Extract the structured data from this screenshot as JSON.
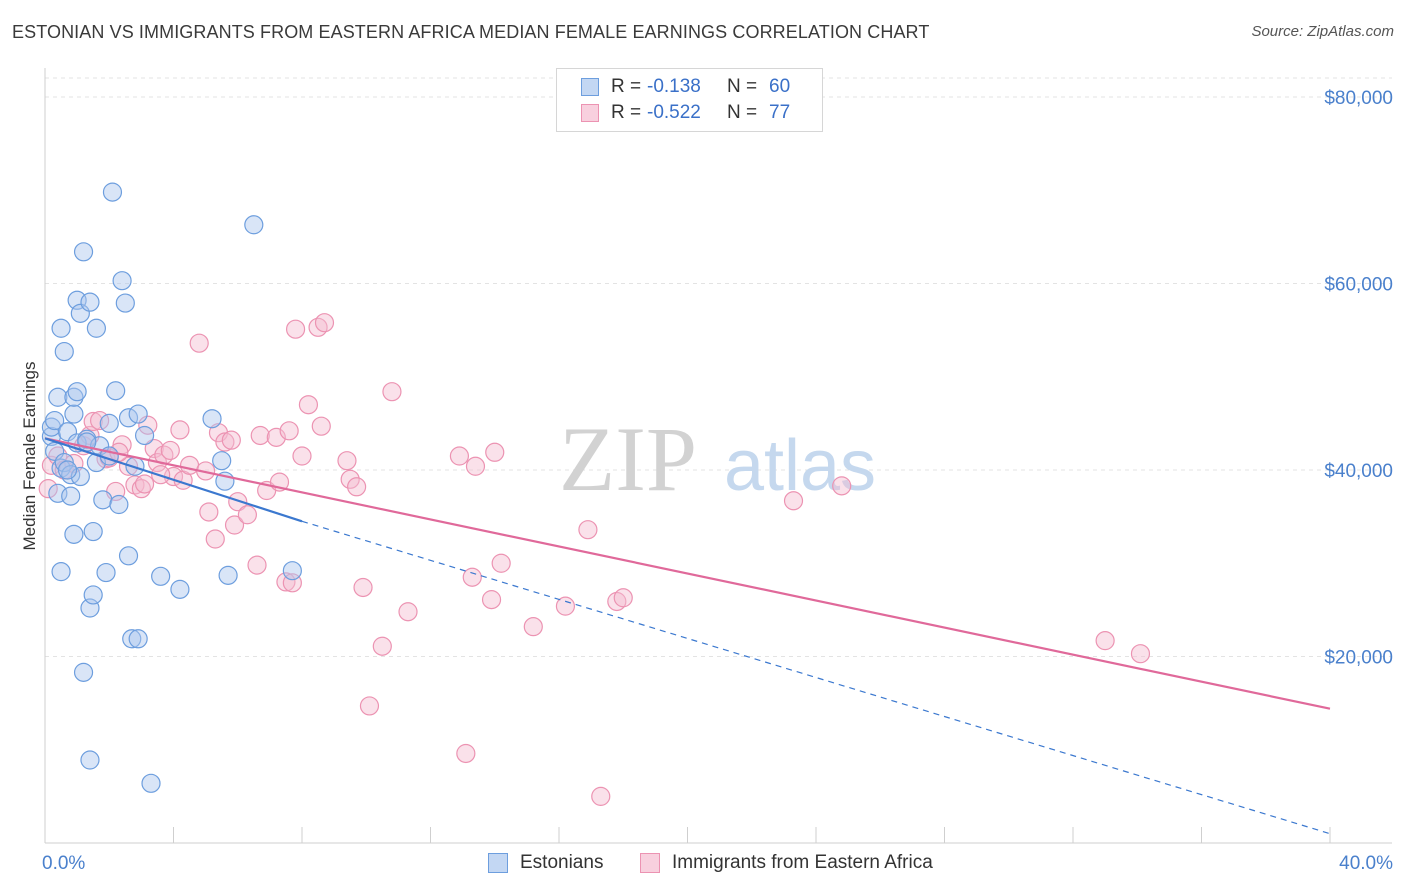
{
  "title": "ESTONIAN VS IMMIGRANTS FROM EASTERN AFRICA MEDIAN FEMALE EARNINGS CORRELATION CHART",
  "source": "Source: ZipAtlas.com",
  "watermark": {
    "zip": "ZIP",
    "atlas": "atlas"
  },
  "legend": {
    "rows": [
      {
        "r_label": "R =",
        "r_value": "-0.138",
        "n_label": "N =",
        "n_value": "60"
      },
      {
        "r_label": "R =",
        "r_value": "-0.522",
        "n_label": "N =",
        "n_value": "77"
      }
    ]
  },
  "colors": {
    "blue_fill": "#aac6ee",
    "blue_edge": "#6d9ede",
    "blue_line": "#3b78cf",
    "pink_fill": "#f5bcd0",
    "pink_edge": "#ec93b2",
    "pink_line": "#e0699a",
    "tick_text": "#4a80cc",
    "grid": "#e3e3e3"
  },
  "chart_data": {
    "type": "scatter",
    "title": "ESTONIAN VS IMMIGRANTS FROM EASTERN AFRICA MEDIAN FEMALE EARNINGS CORRELATION CHART",
    "xlabel": "",
    "ylabel": "Median Female Earnings",
    "xlim": [
      0,
      40
    ],
    "ylim": [
      0,
      80000
    ],
    "x_tick_labels": [
      "0.0%",
      "40.0%"
    ],
    "y_ticks": [
      20000,
      40000,
      60000,
      80000
    ],
    "y_tick_labels": [
      "$20,000",
      "$40,000",
      "$60,000",
      "$80,000"
    ],
    "grid": true,
    "legend_position": "top-center",
    "series": [
      {
        "name": "Estonians",
        "r": -0.138,
        "n": 60,
        "trend_solid": {
          "x": [
            0.0,
            8.0
          ],
          "y": [
            43400,
            34500
          ]
        },
        "trend_dashed": {
          "x": [
            8.0,
            40.0
          ],
          "y": [
            34500,
            1000
          ]
        },
        "points": [
          [
            0.2,
            43600
          ],
          [
            0.3,
            42000
          ],
          [
            0.2,
            44600
          ],
          [
            0.4,
            47800
          ],
          [
            0.3,
            45300
          ],
          [
            0.5,
            40200
          ],
          [
            0.4,
            37500
          ],
          [
            0.6,
            40800
          ],
          [
            0.5,
            29100
          ],
          [
            0.5,
            55200
          ],
          [
            0.6,
            52700
          ],
          [
            0.7,
            44100
          ],
          [
            0.8,
            39500
          ],
          [
            0.8,
            37200
          ],
          [
            0.9,
            46000
          ],
          [
            0.9,
            47800
          ],
          [
            0.9,
            33100
          ],
          [
            1.0,
            48400
          ],
          [
            1.0,
            58200
          ],
          [
            1.0,
            42900
          ],
          [
            1.1,
            39300
          ],
          [
            1.1,
            56800
          ],
          [
            1.2,
            18300
          ],
          [
            1.2,
            63400
          ],
          [
            1.3,
            43300
          ],
          [
            1.4,
            8900
          ],
          [
            1.4,
            25200
          ],
          [
            1.4,
            58000
          ],
          [
            1.5,
            26600
          ],
          [
            1.5,
            33400
          ],
          [
            1.6,
            55200
          ],
          [
            1.6,
            40800
          ],
          [
            1.8,
            36800
          ],
          [
            1.9,
            29000
          ],
          [
            2.0,
            45000
          ],
          [
            2.1,
            69800
          ],
          [
            2.2,
            48500
          ],
          [
            2.3,
            36300
          ],
          [
            2.4,
            60300
          ],
          [
            2.5,
            57900
          ],
          [
            2.6,
            45600
          ],
          [
            2.6,
            30800
          ],
          [
            2.7,
            21900
          ],
          [
            2.8,
            40400
          ],
          [
            2.9,
            46000
          ],
          [
            2.9,
            21900
          ],
          [
            3.1,
            43700
          ],
          [
            3.3,
            6400
          ],
          [
            3.6,
            28600
          ],
          [
            4.2,
            27200
          ],
          [
            5.2,
            45500
          ],
          [
            5.5,
            41000
          ],
          [
            5.6,
            38800
          ],
          [
            5.7,
            28700
          ],
          [
            6.5,
            66300
          ],
          [
            7.7,
            29200
          ],
          [
            1.7,
            42600
          ],
          [
            1.3,
            43000
          ],
          [
            0.7,
            40000
          ],
          [
            2.0,
            41500
          ]
        ]
      },
      {
        "name": "Immigrants from Eastern Africa",
        "r": -0.522,
        "n": 77,
        "trend_solid": {
          "x": [
            0.0,
            40.0
          ],
          "y": [
            43400,
            14400
          ]
        },
        "points": [
          [
            0.1,
            38000
          ],
          [
            0.2,
            40500
          ],
          [
            0.4,
            41500
          ],
          [
            0.6,
            40000
          ],
          [
            0.9,
            40700
          ],
          [
            1.2,
            42600
          ],
          [
            1.4,
            43700
          ],
          [
            1.5,
            45200
          ],
          [
            1.7,
            45300
          ],
          [
            1.9,
            41200
          ],
          [
            2.0,
            41300
          ],
          [
            2.2,
            37700
          ],
          [
            2.4,
            42700
          ],
          [
            2.6,
            40400
          ],
          [
            2.8,
            38400
          ],
          [
            3.0,
            38000
          ],
          [
            3.1,
            38500
          ],
          [
            3.2,
            44800
          ],
          [
            3.4,
            42300
          ],
          [
            3.5,
            40800
          ],
          [
            3.7,
            41600
          ],
          [
            3.9,
            42100
          ],
          [
            4.0,
            39300
          ],
          [
            4.2,
            44300
          ],
          [
            4.3,
            38900
          ],
          [
            4.5,
            40500
          ],
          [
            4.8,
            53600
          ],
          [
            5.0,
            39900
          ],
          [
            5.1,
            35500
          ],
          [
            5.3,
            32600
          ],
          [
            5.4,
            44000
          ],
          [
            5.6,
            43000
          ],
          [
            5.8,
            43200
          ],
          [
            5.9,
            34100
          ],
          [
            6.0,
            36600
          ],
          [
            6.3,
            35200
          ],
          [
            6.6,
            29800
          ],
          [
            6.7,
            43700
          ],
          [
            6.9,
            37800
          ],
          [
            7.2,
            43500
          ],
          [
            7.3,
            38700
          ],
          [
            7.5,
            28000
          ],
          [
            7.6,
            44200
          ],
          [
            7.7,
            27900
          ],
          [
            7.8,
            55100
          ],
          [
            8.0,
            41500
          ],
          [
            8.2,
            47000
          ],
          [
            8.5,
            55300
          ],
          [
            8.6,
            44700
          ],
          [
            8.7,
            55800
          ],
          [
            9.4,
            41000
          ],
          [
            9.5,
            39000
          ],
          [
            9.7,
            38200
          ],
          [
            9.9,
            27400
          ],
          [
            10.1,
            14700
          ],
          [
            10.5,
            21100
          ],
          [
            10.8,
            48400
          ],
          [
            11.3,
            24800
          ],
          [
            12.9,
            41500
          ],
          [
            13.1,
            9600
          ],
          [
            13.3,
            28500
          ],
          [
            13.4,
            40400
          ],
          [
            13.9,
            26100
          ],
          [
            14.0,
            41900
          ],
          [
            14.2,
            30000
          ],
          [
            15.2,
            23200
          ],
          [
            16.2,
            25400
          ],
          [
            16.9,
            33600
          ],
          [
            17.3,
            5000
          ],
          [
            17.8,
            25900
          ],
          [
            18.0,
            26300
          ],
          [
            23.3,
            36700
          ],
          [
            24.8,
            38300
          ],
          [
            33.0,
            21700
          ],
          [
            34.1,
            20300
          ],
          [
            2.3,
            41900
          ],
          [
            3.6,
            39500
          ]
        ]
      }
    ]
  },
  "bottom_legend": [
    "Estonians",
    "Immigrants from Eastern Africa"
  ]
}
